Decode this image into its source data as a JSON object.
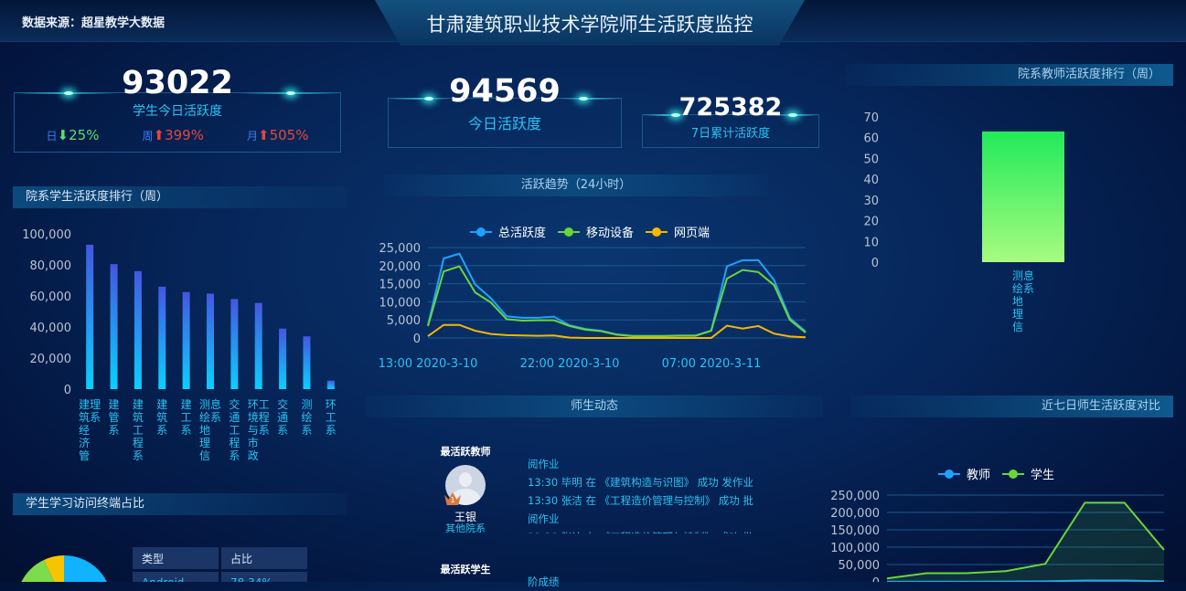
{
  "header": {
    "source": "数据来源：超星教学大数据",
    "title": "甘肃建筑职业技术学院师生活跃度监控"
  },
  "kpi": {
    "student_today": {
      "value": "93022",
      "label": "学生今日活跃度",
      "stats": [
        {
          "label": "日",
          "dir": "down",
          "value": "25%"
        },
        {
          "label": "周",
          "dir": "up",
          "value": "399%"
        },
        {
          "label": "月",
          "dir": "up",
          "value": "505%"
        }
      ]
    },
    "today": {
      "value": "94569",
      "label": "今日活跃度"
    },
    "week": {
      "value": "725382",
      "label": "7日累计活跃度"
    }
  },
  "colors": {
    "up": "#e8463c",
    "down": "#57e36a",
    "accent": "#29c3f2",
    "teacher": "#1ea2ff",
    "student": "#69d63a",
    "web": "#f7b500"
  },
  "sections": {
    "dept_student": "院系学生活跃度排行（周）",
    "trend": "活跃趋势（24小时）",
    "dept_teacher": "院系教师活跃度排行（周）",
    "feed": "师生动态",
    "compare": "近七日师生活跃度对比",
    "terminal": "学生学习访问终端占比"
  },
  "chart_data": [
    {
      "type": "bar",
      "id": "dept_student",
      "categories": [
        "建筑经济管理系",
        "建管系",
        "建筑工程系",
        "建筑系",
        "建工系",
        "测绘地理信息系",
        "交通工程系",
        "环境与市政工程系",
        "交通系",
        "测绘系",
        "环工系"
      ],
      "values": [
        93000,
        80500,
        76000,
        66000,
        62500,
        61500,
        58000,
        55500,
        39000,
        34000,
        5500
      ],
      "ylim": [
        0,
        100000
      ],
      "yticks": [
        "0",
        "20,000",
        "40,000",
        "60,000",
        "80,000",
        "100,000"
      ]
    },
    {
      "type": "line",
      "id": "trend",
      "legend": [
        "总活跃度",
        "移动设备",
        "网页端"
      ],
      "xticks": [
        "13:00 2020-3-10",
        "22:00 2020-3-10",
        "07:00 2020-3-11"
      ],
      "ylim": [
        0,
        25000
      ],
      "yticks": [
        "0",
        "5,000",
        "10,000",
        "15,000",
        "20,000",
        "25,000"
      ],
      "series": [
        {
          "name": "总活跃度",
          "color": "#1ea2ff",
          "values": [
            3500,
            22000,
            23300,
            14800,
            11000,
            6000,
            5600,
            5600,
            5900,
            3500,
            2500,
            2000,
            1000,
            600,
            600,
            600,
            700,
            700,
            2000,
            19800,
            21500,
            21500,
            16000,
            5500,
            1800
          ]
        },
        {
          "name": "移动设备",
          "color": "#69d63a",
          "values": [
            3300,
            18400,
            19800,
            12600,
            9800,
            5200,
            4800,
            4900,
            4900,
            3300,
            2300,
            1900,
            900,
            500,
            500,
            500,
            600,
            600,
            2000,
            16400,
            18800,
            18200,
            14600,
            5000,
            1500
          ]
        },
        {
          "name": "网页端",
          "color": "#f7b500",
          "values": [
            500,
            3600,
            3600,
            2000,
            1100,
            800,
            700,
            600,
            700,
            100,
            0,
            0,
            0,
            0,
            0,
            0,
            0,
            0,
            0,
            3400,
            2600,
            3300,
            1200,
            400,
            200
          ]
        }
      ]
    },
    {
      "type": "bar",
      "id": "dept_teacher",
      "categories": [
        "测绘地理信息系"
      ],
      "values": [
        63
      ],
      "ylim": [
        0,
        70
      ],
      "yticks": [
        "0",
        "10",
        "20",
        "30",
        "40",
        "50",
        "60",
        "70"
      ]
    },
    {
      "type": "line",
      "id": "compare",
      "legend": [
        "教师",
        "学生"
      ],
      "ylim": [
        0,
        250000
      ],
      "yticks": [
        "0",
        "50,000",
        "100,000",
        "150,000",
        "200,000",
        "250,000"
      ],
      "series": [
        {
          "name": "教师",
          "color": "#1ea2ff",
          "values": [
            500,
            800,
            800,
            1000,
            1500,
            4000,
            4000,
            1500
          ]
        },
        {
          "name": "学生",
          "color": "#69d63a",
          "values": [
            10000,
            25000,
            25000,
            31000,
            52000,
            228000,
            228000,
            92000
          ]
        }
      ]
    },
    {
      "type": "table",
      "id": "terminal",
      "columns": [
        "类型",
        "占比"
      ],
      "rows": [
        [
          "Android",
          "78.34%"
        ]
      ]
    }
  ],
  "feed": {
    "teacher_title": "最活跃教师",
    "teacher_name": "王银",
    "teacher_dept": "其他院系",
    "rank": "1",
    "teacher_lines": [
      "阅作业",
      "13:30 毕明 在 《建筑构造与识图》 成功 发作业",
      "13:30 张洁 在 《工程造价管理与控制》 成功 批",
      "阅作业",
      "13:30 张洁 在 《工程造价管理与控制》 成功 批"
    ],
    "student_title": "最活跃学生",
    "student_lines": [
      "阶成绩"
    ]
  }
}
